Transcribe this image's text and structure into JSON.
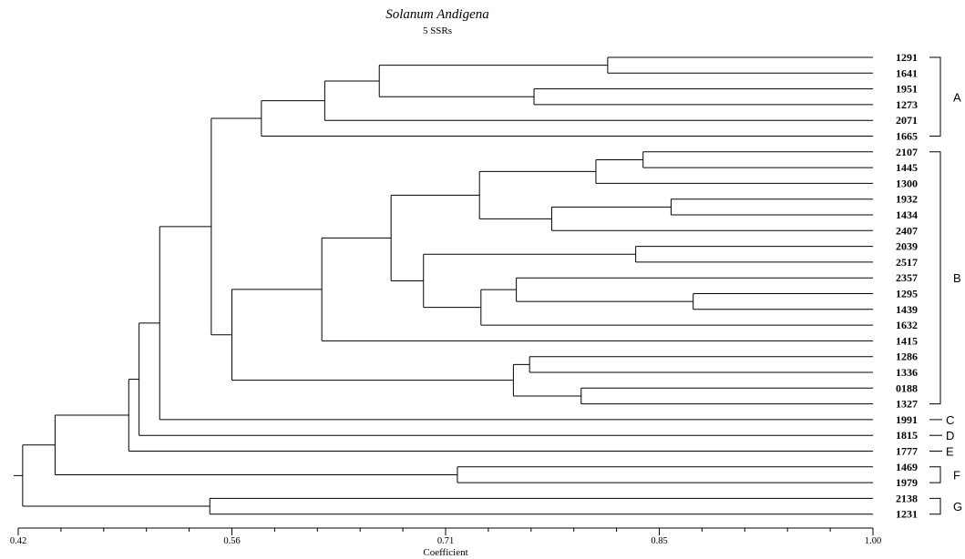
{
  "chart_data": {
    "type": "dendrogram",
    "title": "Solanum Andigena",
    "subtitle": "5 SSRs",
    "xlabel": "Coefficient",
    "xlim": [
      0.42,
      1.0
    ],
    "xticks": [
      0.42,
      0.56,
      0.71,
      0.85,
      1.0
    ],
    "tick_labels": [
      "0.42",
      "0.56",
      "0.71",
      "0.85",
      "1.00"
    ],
    "leaves": [
      "1291",
      "1641",
      "1951",
      "1273",
      "2071",
      "1665",
      "2107",
      "1445",
      "1300",
      "1932",
      "1434",
      "2407",
      "2039",
      "2517",
      "2357",
      "1295",
      "1439",
      "1632",
      "1415",
      "1286",
      "1336",
      "0188",
      "1327",
      "1991",
      "1815",
      "1777",
      "1469",
      "1979",
      "2138",
      "1231"
    ],
    "merges": [
      {
        "id": "n1",
        "children": [
          "1291",
          "1641"
        ],
        "height": 0.82
      },
      {
        "id": "n2",
        "children": [
          "1951",
          "1273"
        ],
        "height": 0.77
      },
      {
        "id": "n3",
        "children": [
          "n1",
          "n2"
        ],
        "height": 0.665
      },
      {
        "id": "n4",
        "children": [
          "n3",
          "2071"
        ],
        "height": 0.628
      },
      {
        "id": "n5",
        "children": [
          "n4",
          "1665"
        ],
        "height": 0.585
      },
      {
        "id": "n6",
        "children": [
          "2107",
          "1445"
        ],
        "height": 0.844
      },
      {
        "id": "n7",
        "children": [
          "n6",
          "1300"
        ],
        "height": 0.812
      },
      {
        "id": "n8",
        "children": [
          "1932",
          "1434"
        ],
        "height": 0.863
      },
      {
        "id": "n9",
        "children": [
          "n8",
          "2407"
        ],
        "height": 0.782
      },
      {
        "id": "n10",
        "children": [
          "n7",
          "n9"
        ],
        "height": 0.733
      },
      {
        "id": "n11",
        "children": [
          "2039",
          "2517"
        ],
        "height": 0.839
      },
      {
        "id": "n12",
        "children": [
          "1295",
          "1439"
        ],
        "height": 0.878
      },
      {
        "id": "n13",
        "children": [
          "2357",
          "n12"
        ],
        "height": 0.758
      },
      {
        "id": "n14",
        "children": [
          "n13",
          "1632"
        ],
        "height": 0.734
      },
      {
        "id": "n15",
        "children": [
          "n11",
          "n14"
        ],
        "height": 0.695
      },
      {
        "id": "n16",
        "children": [
          "n10",
          "n15"
        ],
        "height": 0.673
      },
      {
        "id": "n17",
        "children": [
          "n16",
          "1415"
        ],
        "height": 0.626
      },
      {
        "id": "n18",
        "children": [
          "1286",
          "1336"
        ],
        "height": 0.767
      },
      {
        "id": "n19",
        "children": [
          "0188",
          "1327"
        ],
        "height": 0.802
      },
      {
        "id": "n20",
        "children": [
          "n18",
          "n19"
        ],
        "height": 0.756
      },
      {
        "id": "n21",
        "children": [
          "n17",
          "n20"
        ],
        "height": 0.565
      },
      {
        "id": "n22",
        "children": [
          "n5",
          "n21"
        ],
        "height": 0.551
      },
      {
        "id": "n23",
        "children": [
          "n22",
          "1991"
        ],
        "height": 0.516
      },
      {
        "id": "n24",
        "children": [
          "n23",
          "1815"
        ],
        "height": 0.502
      },
      {
        "id": "n25",
        "children": [
          "n24",
          "1777"
        ],
        "height": 0.495
      },
      {
        "id": "n26",
        "children": [
          "1469",
          "1979"
        ],
        "height": 0.718
      },
      {
        "id": "n27",
        "children": [
          "n25",
          "n26"
        ],
        "height": 0.445
      },
      {
        "id": "n28",
        "children": [
          "2138",
          "1231"
        ],
        "height": 0.55
      },
      {
        "id": "n29",
        "children": [
          "n27",
          "n28"
        ],
        "height": 0.423
      }
    ],
    "groups": [
      {
        "label": "A",
        "members": [
          "1291",
          "1641",
          "1951",
          "1273",
          "2071",
          "1665"
        ]
      },
      {
        "label": "B",
        "members": [
          "2107",
          "1445",
          "1300",
          "1932",
          "1434",
          "2407",
          "2039",
          "2517",
          "2357",
          "1295",
          "1439",
          "1632",
          "1415",
          "1286",
          "1336",
          "0188",
          "1327"
        ]
      },
      {
        "label": "C",
        "members": [
          "1991"
        ]
      },
      {
        "label": "D",
        "members": [
          "1815"
        ]
      },
      {
        "label": "E",
        "members": [
          "1777"
        ]
      },
      {
        "label": "F",
        "members": [
          "1469",
          "1979"
        ]
      },
      {
        "label": "G",
        "members": [
          "2138",
          "1231"
        ]
      }
    ]
  }
}
